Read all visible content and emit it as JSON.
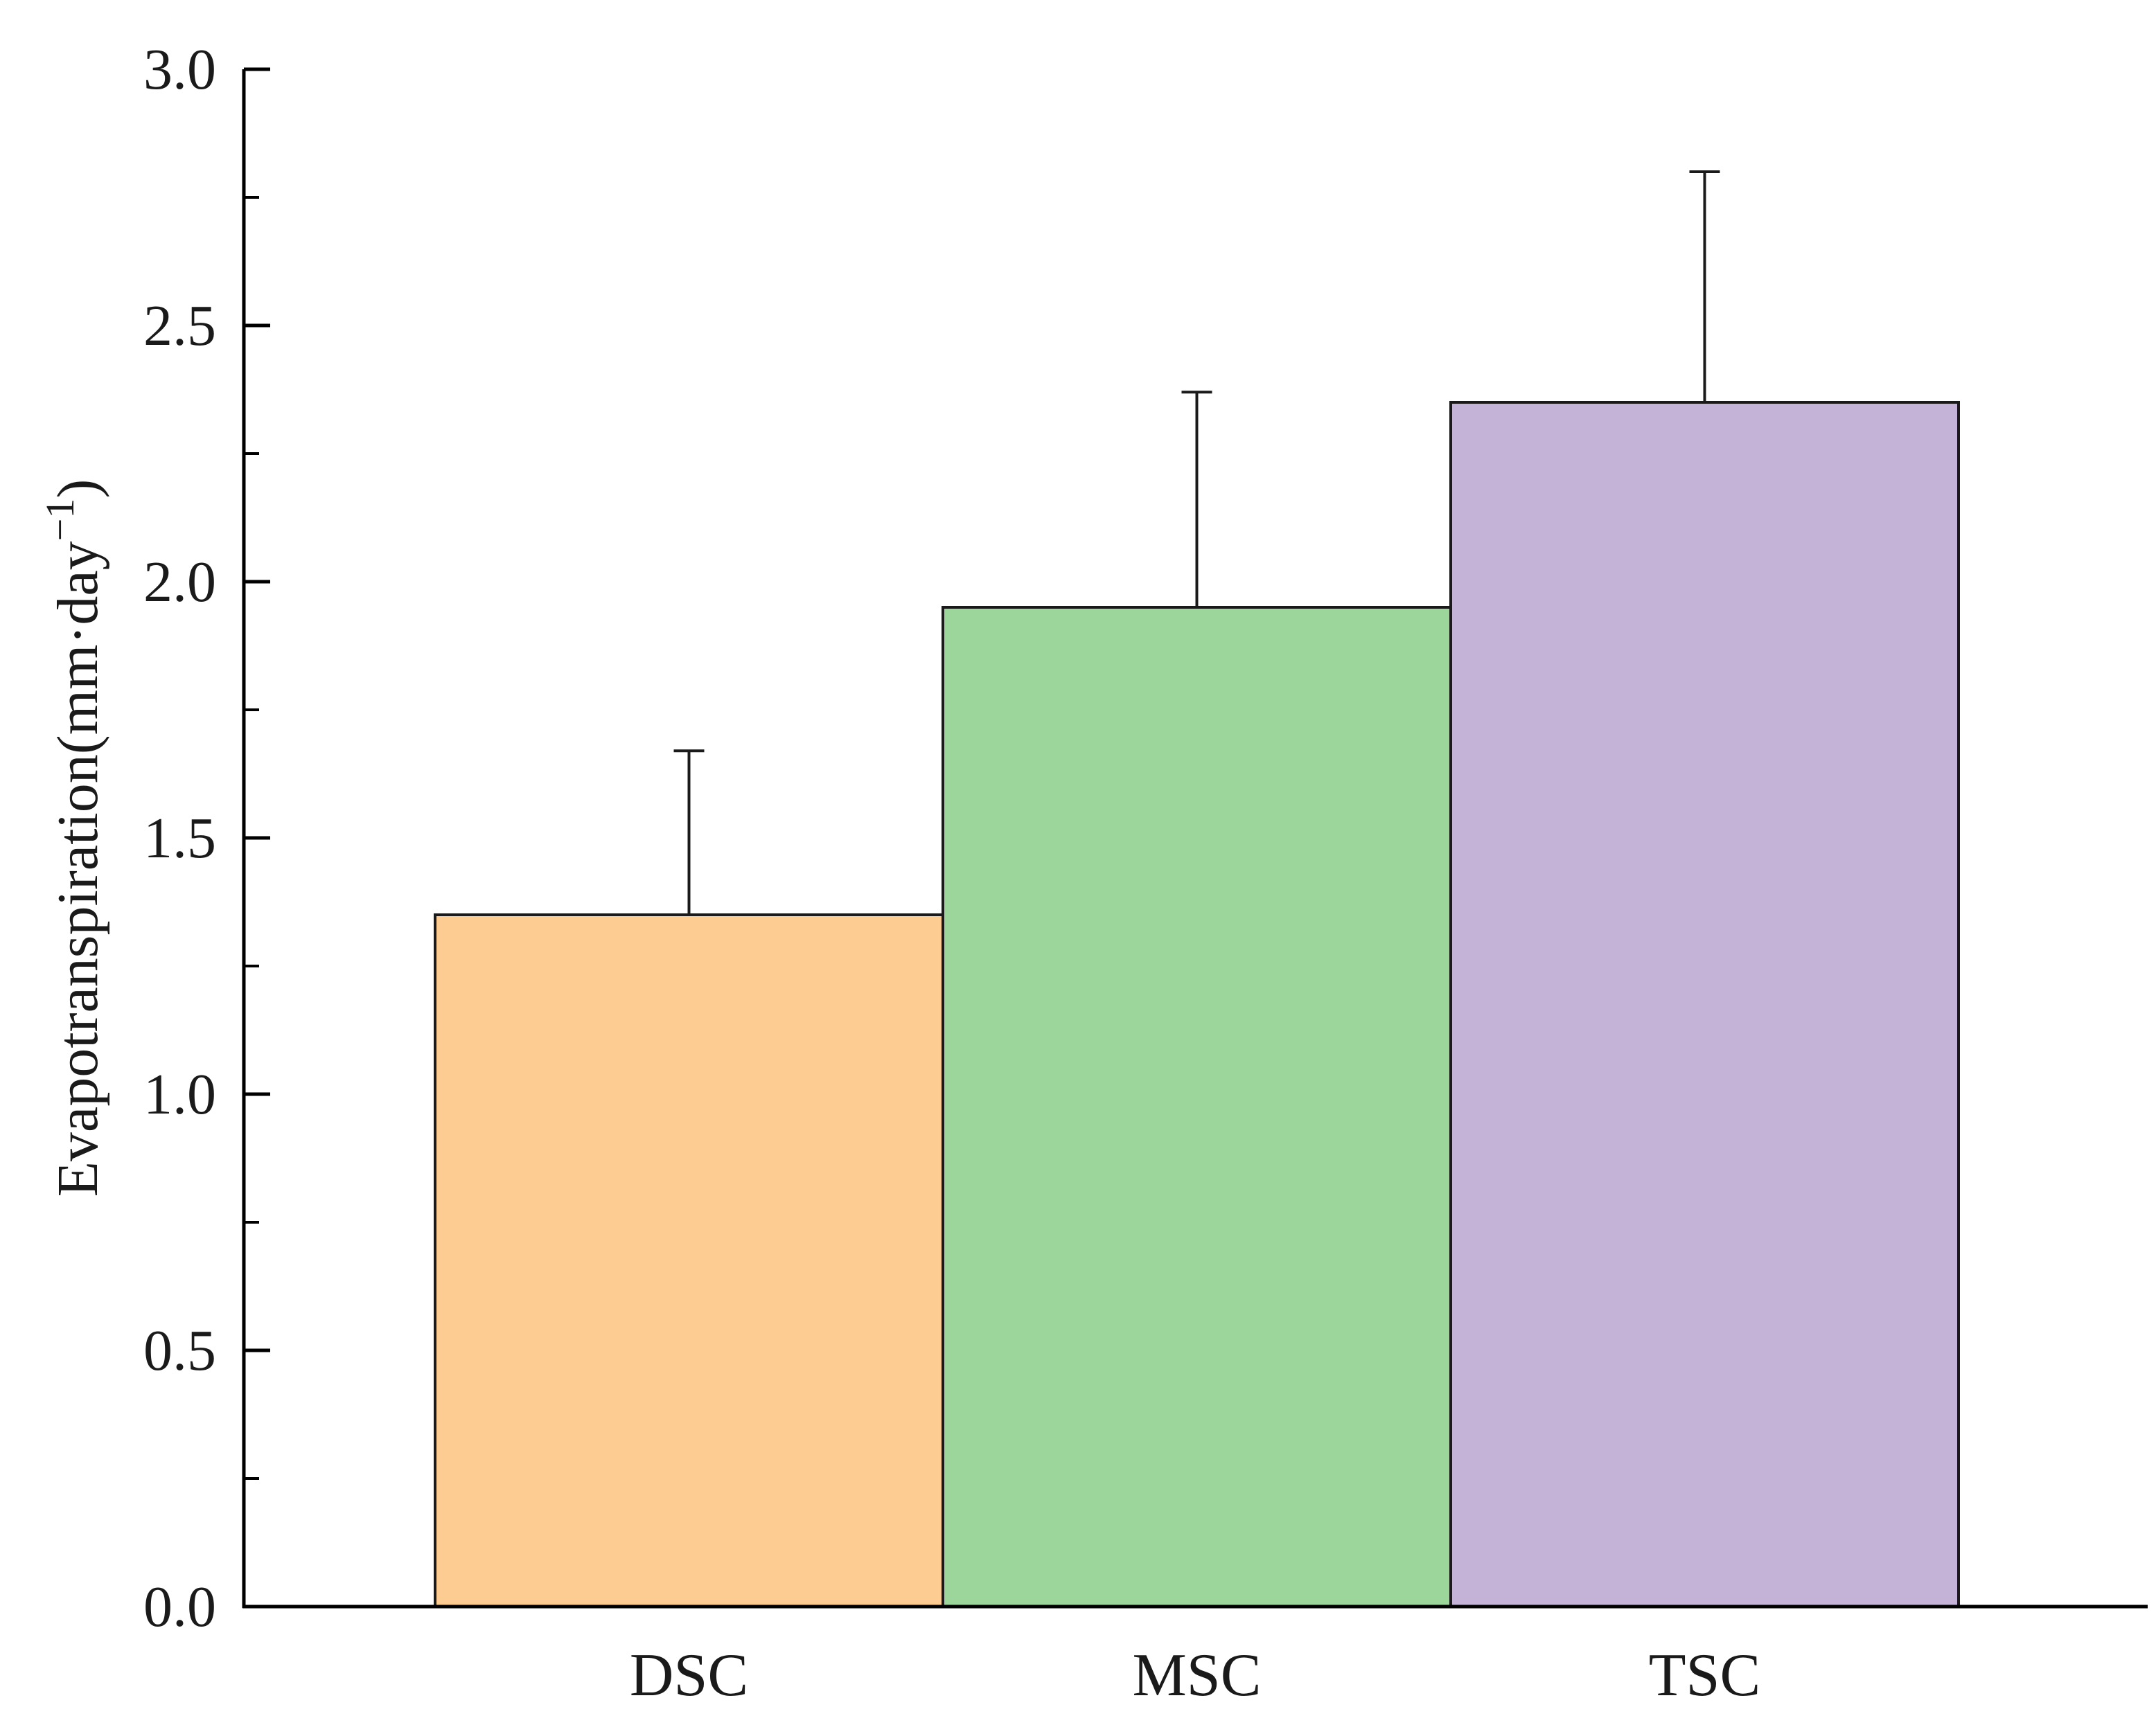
{
  "chart_data": {
    "type": "bar",
    "categories": [
      "DSC",
      "MSC",
      "TSC"
    ],
    "values": [
      1.35,
      1.95,
      2.35
    ],
    "errors": [
      0.32,
      0.42,
      0.45
    ],
    "colors": [
      "#fccc93",
      "#9dd69a",
      "#c4b3d6"
    ],
    "title": "",
    "xlabel": "",
    "ylabel": "Evapotranspiration(mm·day",
    "ylabel_superscript": "−1",
    "ylabel_close": ")",
    "ylim": [
      0,
      3.0
    ],
    "yticks": [
      "0.0",
      "0.5",
      "1.0",
      "1.5",
      "2.0",
      "2.5",
      "3.0"
    ],
    "grid": false,
    "legend": "none"
  }
}
